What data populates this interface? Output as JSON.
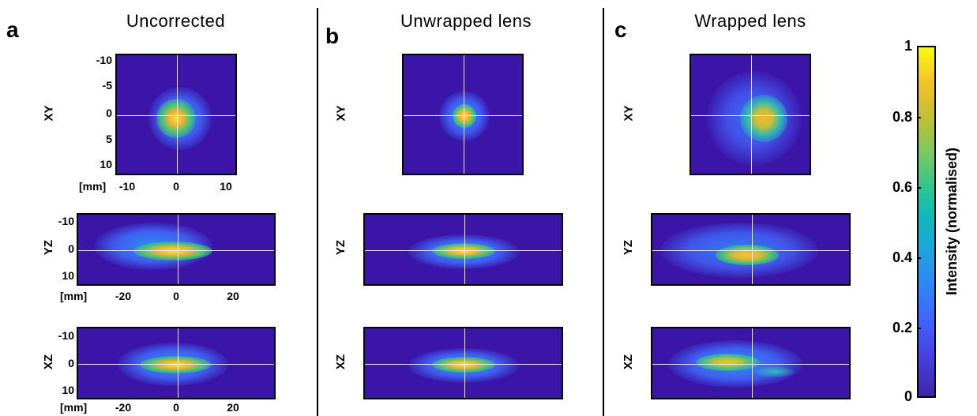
{
  "panels": {
    "a": {
      "letter": "a",
      "title": "Uncorrected"
    },
    "b": {
      "letter": "b",
      "title": "Unwrapped lens"
    },
    "c": {
      "letter": "c",
      "title": "Wrapped lens"
    }
  },
  "row_labels": {
    "xy": "XY",
    "yz": "YZ",
    "xz": "XZ"
  },
  "axes": {
    "xy_y_ticks": [
      "-10",
      "-5",
      "0",
      "5",
      "10"
    ],
    "xy_x_ticks": [
      "-10",
      "0",
      "10"
    ],
    "xy_unit": "[mm]",
    "z_y_ticks": [
      "-10",
      "0",
      "10"
    ],
    "z_x_ticks": [
      "-20",
      "0",
      "20"
    ],
    "z_unit": "[mm]"
  },
  "colorbar": {
    "label": "Intensity (normalised)",
    "ticks": [
      "1",
      "0.8",
      "0.6",
      "0.4",
      "0.2",
      "0"
    ],
    "colors": {
      "low": "#3e26a8",
      "mid": "#0ebaba",
      "high": "#f9fb0e"
    }
  }
}
